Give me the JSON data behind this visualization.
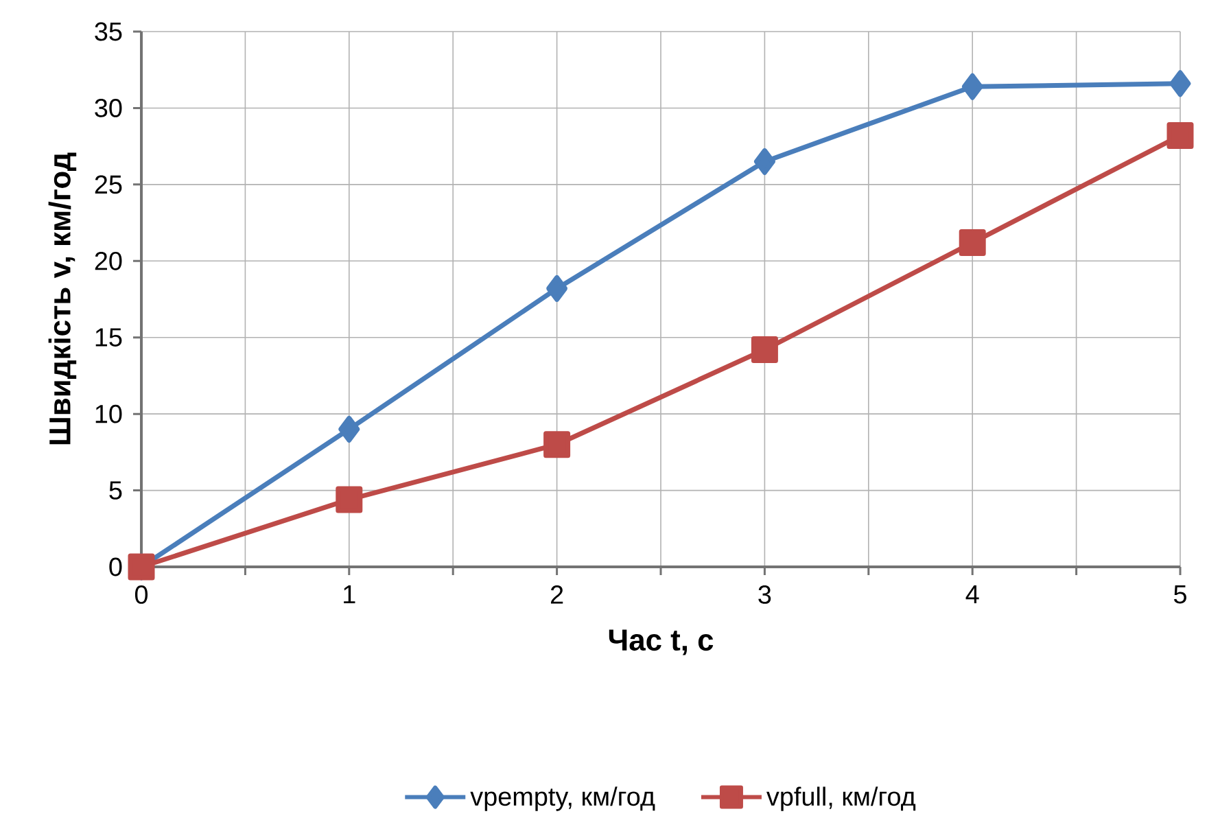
{
  "chart_data": {
    "type": "line",
    "xlabel": "Час t, с",
    "ylabel": "Швидкість v, км/год",
    "x": [
      0,
      1,
      2,
      3,
      4,
      5
    ],
    "series": [
      {
        "name": "vpempty, км/год",
        "color": "#4a7ebb",
        "marker": "diamond",
        "values": [
          0,
          9.0,
          18.2,
          26.5,
          31.4,
          31.6
        ]
      },
      {
        "name": "vpfull, км/год",
        "color": "#be4b48",
        "marker": "square",
        "values": [
          0,
          4.4,
          8.0,
          14.2,
          21.2,
          28.2
        ]
      }
    ],
    "xlim": [
      0,
      5
    ],
    "ylim": [
      0,
      35
    ],
    "xticks": [
      0,
      {
        "value": 0.5,
        "label": null
      },
      1,
      {
        "value": 1.5,
        "label": null
      },
      2,
      {
        "value": 2.5,
        "label": null
      },
      3,
      {
        "value": 3.5,
        "label": null
      },
      4,
      {
        "value": 4.5,
        "label": null
      },
      5
    ],
    "yticks": [
      0,
      5,
      10,
      15,
      20,
      25,
      30,
      35
    ],
    "grid": true,
    "legend": "bottom",
    "line_style": "solid"
  }
}
